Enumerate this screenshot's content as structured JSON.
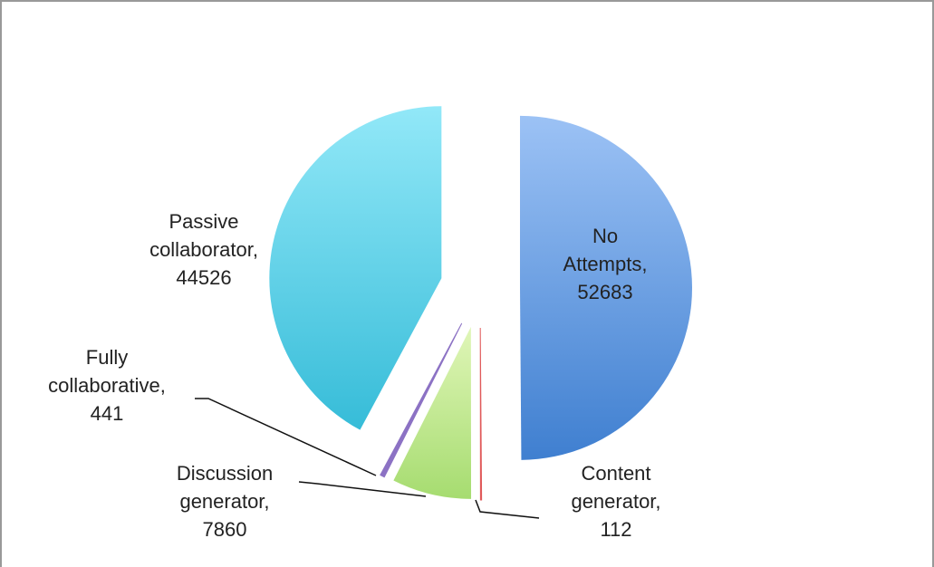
{
  "chart_data": {
    "type": "pie",
    "categories": [
      "No Attempts",
      "Content generator",
      "Discussion generator",
      "Fully collaborative",
      "Passive collaborator"
    ],
    "values": [
      52683,
      112,
      7860,
      441,
      44526
    ],
    "colors": [
      "#5a90dc",
      "#e05a5a",
      "#b8e48a",
      "#8c72c4",
      "#5ccfe6"
    ],
    "label_separator": ","
  }
}
